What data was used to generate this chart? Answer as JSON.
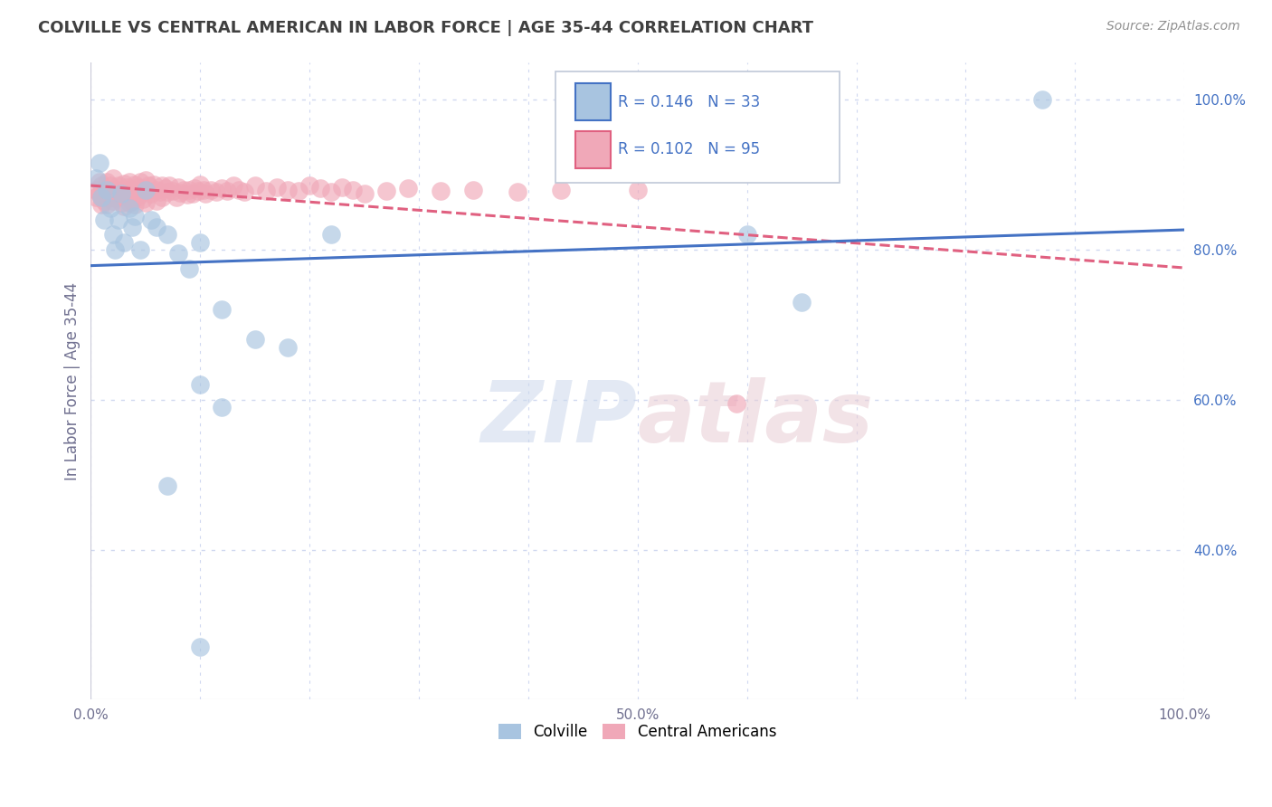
{
  "title": "COLVILLE VS CENTRAL AMERICAN IN LABOR FORCE | AGE 35-44 CORRELATION CHART",
  "source": "Source: ZipAtlas.com",
  "ylabel": "In Labor Force | Age 35-44",
  "xlim": [
    0.0,
    1.0
  ],
  "ylim": [
    0.2,
    1.05
  ],
  "yticks": [
    0.4,
    0.6,
    0.8,
    1.0
  ],
  "ytick_labels": [
    "40.0%",
    "60.0%",
    "80.0%",
    "100.0%"
  ],
  "xticks": [
    0.0,
    0.1,
    0.2,
    0.3,
    0.4,
    0.5,
    0.6,
    0.7,
    0.8,
    0.9,
    1.0
  ],
  "xtick_labels": [
    "0.0%",
    "",
    "",
    "",
    "",
    "50.0%",
    "",
    "",
    "",
    "",
    "100.0%"
  ],
  "colville_R": 0.146,
  "colville_N": 33,
  "central_R": 0.102,
  "central_N": 95,
  "colville_color": "#a8c4e0",
  "central_color": "#f0a8b8",
  "trendline_colville_color": "#4472c4",
  "trendline_central_color": "#e06080",
  "background_color": "#ffffff",
  "grid_color": "#d0d8f0",
  "title_color": "#404040",
  "colville_points": [
    [
      0.005,
      0.895
    ],
    [
      0.008,
      0.915
    ],
    [
      0.01,
      0.87
    ],
    [
      0.012,
      0.84
    ],
    [
      0.015,
      0.88
    ],
    [
      0.018,
      0.855
    ],
    [
      0.02,
      0.82
    ],
    [
      0.022,
      0.8
    ],
    [
      0.025,
      0.84
    ],
    [
      0.028,
      0.875
    ],
    [
      0.03,
      0.81
    ],
    [
      0.035,
      0.855
    ],
    [
      0.038,
      0.83
    ],
    [
      0.04,
      0.845
    ],
    [
      0.045,
      0.8
    ],
    [
      0.05,
      0.88
    ],
    [
      0.055,
      0.84
    ],
    [
      0.06,
      0.83
    ],
    [
      0.07,
      0.82
    ],
    [
      0.08,
      0.795
    ],
    [
      0.09,
      0.775
    ],
    [
      0.1,
      0.81
    ],
    [
      0.12,
      0.72
    ],
    [
      0.15,
      0.68
    ],
    [
      0.18,
      0.67
    ],
    [
      0.22,
      0.82
    ],
    [
      0.1,
      0.62
    ],
    [
      0.12,
      0.59
    ],
    [
      0.07,
      0.485
    ],
    [
      0.1,
      0.27
    ],
    [
      0.6,
      0.82
    ],
    [
      0.65,
      0.73
    ],
    [
      0.87,
      1.0
    ]
  ],
  "central_points": [
    [
      0.005,
      0.88
    ],
    [
      0.005,
      0.87
    ],
    [
      0.008,
      0.89
    ],
    [
      0.008,
      0.875
    ],
    [
      0.01,
      0.885
    ],
    [
      0.01,
      0.87
    ],
    [
      0.01,
      0.86
    ],
    [
      0.012,
      0.88
    ],
    [
      0.012,
      0.865
    ],
    [
      0.015,
      0.89
    ],
    [
      0.015,
      0.875
    ],
    [
      0.015,
      0.86
    ],
    [
      0.018,
      0.885
    ],
    [
      0.018,
      0.87
    ],
    [
      0.02,
      0.895
    ],
    [
      0.02,
      0.88
    ],
    [
      0.02,
      0.865
    ],
    [
      0.022,
      0.88
    ],
    [
      0.022,
      0.868
    ],
    [
      0.025,
      0.885
    ],
    [
      0.025,
      0.872
    ],
    [
      0.028,
      0.878
    ],
    [
      0.028,
      0.862
    ],
    [
      0.03,
      0.888
    ],
    [
      0.03,
      0.875
    ],
    [
      0.03,
      0.858
    ],
    [
      0.033,
      0.883
    ],
    [
      0.033,
      0.87
    ],
    [
      0.035,
      0.89
    ],
    [
      0.035,
      0.877
    ],
    [
      0.035,
      0.862
    ],
    [
      0.038,
      0.88
    ],
    [
      0.038,
      0.865
    ],
    [
      0.04,
      0.887
    ],
    [
      0.04,
      0.873
    ],
    [
      0.04,
      0.86
    ],
    [
      0.043,
      0.883
    ],
    [
      0.043,
      0.87
    ],
    [
      0.045,
      0.89
    ],
    [
      0.045,
      0.875
    ],
    [
      0.048,
      0.882
    ],
    [
      0.048,
      0.867
    ],
    [
      0.05,
      0.893
    ],
    [
      0.05,
      0.878
    ],
    [
      0.05,
      0.862
    ],
    [
      0.053,
      0.885
    ],
    [
      0.055,
      0.875
    ],
    [
      0.058,
      0.887
    ],
    [
      0.06,
      0.88
    ],
    [
      0.06,
      0.865
    ],
    [
      0.063,
      0.877
    ],
    [
      0.065,
      0.885
    ],
    [
      0.065,
      0.87
    ],
    [
      0.068,
      0.882
    ],
    [
      0.07,
      0.877
    ],
    [
      0.072,
      0.885
    ],
    [
      0.075,
      0.878
    ],
    [
      0.078,
      0.87
    ],
    [
      0.08,
      0.883
    ],
    [
      0.082,
      0.876
    ],
    [
      0.085,
      0.88
    ],
    [
      0.088,
      0.873
    ],
    [
      0.09,
      0.88
    ],
    [
      0.093,
      0.875
    ],
    [
      0.095,
      0.882
    ],
    [
      0.098,
      0.878
    ],
    [
      0.1,
      0.887
    ],
    [
      0.103,
      0.88
    ],
    [
      0.105,
      0.875
    ],
    [
      0.11,
      0.88
    ],
    [
      0.115,
      0.877
    ],
    [
      0.12,
      0.882
    ],
    [
      0.125,
      0.878
    ],
    [
      0.13,
      0.885
    ],
    [
      0.135,
      0.88
    ],
    [
      0.14,
      0.877
    ],
    [
      0.15,
      0.885
    ],
    [
      0.16,
      0.878
    ],
    [
      0.17,
      0.883
    ],
    [
      0.18,
      0.88
    ],
    [
      0.19,
      0.878
    ],
    [
      0.2,
      0.885
    ],
    [
      0.21,
      0.882
    ],
    [
      0.22,
      0.877
    ],
    [
      0.23,
      0.883
    ],
    [
      0.24,
      0.88
    ],
    [
      0.25,
      0.875
    ],
    [
      0.27,
      0.878
    ],
    [
      0.29,
      0.882
    ],
    [
      0.32,
      0.878
    ],
    [
      0.35,
      0.88
    ],
    [
      0.39,
      0.877
    ],
    [
      0.43,
      0.88
    ],
    [
      0.5,
      0.88
    ],
    [
      0.59,
      0.595
    ]
  ]
}
